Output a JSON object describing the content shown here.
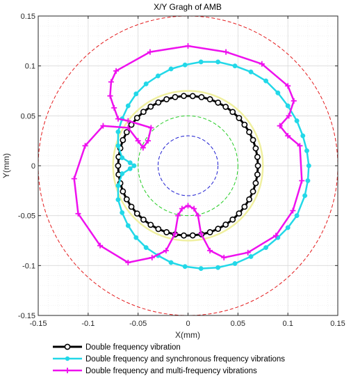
{
  "chart_data": {
    "type": "line",
    "title": "X/Y Gragh of AMB",
    "xlabel": "X(mm)",
    "ylabel": "Y(mm)",
    "xlim": [
      -0.15,
      0.15
    ],
    "ylim": [
      -0.15,
      0.15
    ],
    "x_ticks": [
      "-0.15",
      "-0.1",
      "-0.05",
      "0",
      "0.05",
      "0.1",
      "0.15"
    ],
    "y_ticks": [
      "-0.15",
      "-0.1",
      "-0.05",
      "0",
      "0.05",
      "0.1",
      "0.15"
    ],
    "grid": true,
    "legend_position": "bottom",
    "reference_circles": [
      {
        "radius": 0.15,
        "color": "#e41a1c",
        "style": "dashed"
      },
      {
        "radius": 0.05,
        "color": "#22cc22",
        "style": "dashed"
      },
      {
        "radius": 0.03,
        "color": "#1f1fd1",
        "style": "dashed"
      },
      {
        "radius": 0.075,
        "color": "#f0f0a0",
        "style": "solid"
      }
    ],
    "series": [
      {
        "name": "Double frequency vibration",
        "color": "#000000",
        "marker": "open-circle",
        "points": [
          [
            0.07,
            0.0
          ],
          [
            0.0695,
            0.0088
          ],
          [
            0.0678,
            0.0174
          ],
          [
            0.0651,
            0.0258
          ],
          [
            0.0613,
            0.0337
          ],
          [
            0.0566,
            0.0411
          ],
          [
            0.0511,
            0.0478
          ],
          [
            0.0447,
            0.0539
          ],
          [
            0.0377,
            0.059
          ],
          [
            0.0301,
            0.0632
          ],
          [
            0.022,
            0.0666
          ],
          [
            0.0135,
            0.0687
          ],
          [
            0.0047,
            0.0698
          ],
          [
            -0.0042,
            0.0699
          ],
          [
            -0.0129,
            0.0688
          ],
          [
            -0.0215,
            0.0666
          ],
          [
            -0.0297,
            0.0634
          ],
          [
            -0.0374,
            0.0592
          ],
          [
            -0.0446,
            0.054
          ],
          [
            -0.051,
            0.0479
          ],
          [
            -0.0567,
            0.0411
          ],
          [
            -0.0614,
            0.0336
          ],
          [
            -0.0652,
            0.0257
          ],
          [
            -0.0678,
            0.0175
          ],
          [
            -0.0695,
            0.0088
          ],
          [
            -0.07,
            0.0
          ],
          [
            -0.0695,
            -0.0088
          ],
          [
            -0.0678,
            -0.0175
          ],
          [
            -0.0652,
            -0.0257
          ],
          [
            -0.0614,
            -0.0336
          ],
          [
            -0.0567,
            -0.0411
          ],
          [
            -0.051,
            -0.0479
          ],
          [
            -0.0446,
            -0.054
          ],
          [
            -0.0374,
            -0.0592
          ],
          [
            -0.0297,
            -0.0634
          ],
          [
            -0.0215,
            -0.0666
          ],
          [
            -0.0129,
            -0.0688
          ],
          [
            -0.0042,
            -0.0699
          ],
          [
            0.0047,
            -0.0698
          ],
          [
            0.0135,
            -0.0687
          ],
          [
            0.022,
            -0.0666
          ],
          [
            0.0301,
            -0.0632
          ],
          [
            0.0377,
            -0.059
          ],
          [
            0.0447,
            -0.0539
          ],
          [
            0.0511,
            -0.0478
          ],
          [
            0.0566,
            -0.0411
          ],
          [
            0.0613,
            -0.0337
          ],
          [
            0.0651,
            -0.0258
          ],
          [
            0.0678,
            -0.0174
          ],
          [
            0.0695,
            -0.0088
          ],
          [
            0.07,
            0.0
          ]
        ]
      },
      {
        "name": "Double frequency and synchronous frequency vibrations",
        "color": "#22d8e8",
        "marker": "filled-circle",
        "points": [
          [
            0.117,
            -0.03
          ],
          [
            0.12,
            -0.015
          ],
          [
            0.121,
            0.0
          ],
          [
            0.119,
            0.015
          ],
          [
            0.115,
            0.03
          ],
          [
            0.109,
            0.045
          ],
          [
            0.1,
            0.06
          ],
          [
            0.09,
            0.073
          ],
          [
            0.078,
            0.085
          ],
          [
            0.063,
            0.094
          ],
          [
            0.047,
            0.1
          ],
          [
            0.03,
            0.104
          ],
          [
            0.013,
            0.104
          ],
          [
            -0.003,
            0.101
          ],
          [
            -0.017,
            0.097
          ],
          [
            -0.03,
            0.09
          ],
          [
            -0.042,
            0.082
          ],
          [
            -0.052,
            0.072
          ],
          [
            -0.06,
            0.06
          ],
          [
            -0.066,
            0.047
          ],
          [
            -0.07,
            0.034
          ],
          [
            -0.07,
            0.02
          ],
          [
            -0.066,
            0.008
          ],
          [
            -0.058,
            0.003
          ],
          [
            -0.054,
            0.0
          ],
          [
            -0.058,
            -0.003
          ],
          [
            -0.066,
            -0.008
          ],
          [
            -0.07,
            -0.02
          ],
          [
            -0.07,
            -0.034
          ],
          [
            -0.066,
            -0.047
          ],
          [
            -0.06,
            -0.06
          ],
          [
            -0.052,
            -0.072
          ],
          [
            -0.042,
            -0.082
          ],
          [
            -0.03,
            -0.09
          ],
          [
            -0.017,
            -0.097
          ],
          [
            -0.003,
            -0.101
          ],
          [
            0.013,
            -0.103
          ],
          [
            0.03,
            -0.102
          ],
          [
            0.047,
            -0.098
          ],
          [
            0.063,
            -0.091
          ],
          [
            0.078,
            -0.082
          ],
          [
            0.09,
            -0.072
          ],
          [
            0.1,
            -0.062
          ],
          [
            0.109,
            -0.05
          ],
          [
            0.117,
            -0.03
          ]
        ]
      },
      {
        "name": "Double frequency and multi-frequency vibrations",
        "color": "#ee11ee",
        "marker": "plus",
        "points": [
          [
            0.0,
            0.12
          ],
          [
            0.038,
            0.114
          ],
          [
            0.074,
            0.102
          ],
          [
            0.1,
            0.08
          ],
          [
            0.106,
            0.065
          ],
          [
            0.101,
            0.05
          ],
          [
            0.092,
            0.04
          ],
          [
            0.1,
            0.03
          ],
          [
            0.112,
            0.02
          ],
          [
            0.114,
            -0.015
          ],
          [
            0.105,
            -0.045
          ],
          [
            0.088,
            -0.07
          ],
          [
            0.06,
            -0.087
          ],
          [
            0.036,
            -0.092
          ],
          [
            0.022,
            -0.085
          ],
          [
            0.013,
            -0.068
          ],
          [
            0.01,
            -0.05
          ],
          [
            0.006,
            -0.043
          ],
          [
            0.0,
            -0.04
          ],
          [
            -0.006,
            -0.043
          ],
          [
            -0.01,
            -0.05
          ],
          [
            -0.013,
            -0.068
          ],
          [
            -0.022,
            -0.085
          ],
          [
            -0.036,
            -0.092
          ],
          [
            -0.06,
            -0.097
          ],
          [
            -0.088,
            -0.08
          ],
          [
            -0.11,
            -0.048
          ],
          [
            -0.114,
            -0.013
          ],
          [
            -0.103,
            0.02
          ],
          [
            -0.085,
            0.04
          ],
          [
            -0.06,
            0.038
          ],
          [
            -0.05,
            0.025
          ],
          [
            -0.045,
            0.018
          ],
          [
            -0.04,
            0.025
          ],
          [
            -0.037,
            0.038
          ],
          [
            -0.06,
            0.045
          ],
          [
            -0.07,
            0.047
          ],
          [
            -0.074,
            0.058
          ],
          [
            -0.078,
            0.07
          ],
          [
            -0.077,
            0.084
          ],
          [
            -0.072,
            0.095
          ],
          [
            -0.038,
            0.114
          ],
          [
            0.0,
            0.12
          ]
        ]
      }
    ]
  }
}
